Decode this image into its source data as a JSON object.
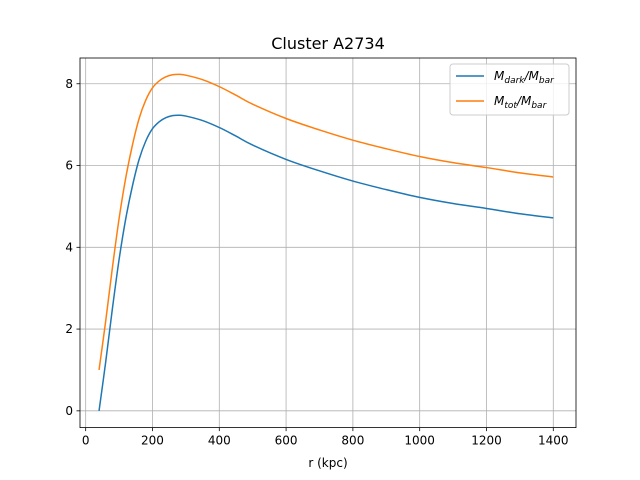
{
  "chart_data": {
    "type": "line",
    "title": "Cluster A2734",
    "xlabel": "r (kpc)",
    "ylabel": "",
    "xlim": [
      -17,
      1468
    ],
    "ylim": [
      -0.41,
      8.63
    ],
    "xticks": [
      0,
      200,
      400,
      600,
      800,
      1000,
      1200,
      1400
    ],
    "yticks": [
      0,
      2,
      4,
      6,
      8
    ],
    "grid": true,
    "legend_position": "top-right",
    "series": [
      {
        "name": "M_dark/M_bar",
        "legend_main": "M",
        "legend_sub1": "dark",
        "legend_mid": "/M",
        "legend_sub2": "bar",
        "color": "#1f77b4",
        "x": [
          40,
          60,
          80,
          100,
          120,
          140,
          160,
          180,
          200,
          220,
          240,
          260,
          280,
          300,
          350,
          400,
          450,
          500,
          600,
          700,
          800,
          900,
          1000,
          1100,
          1200,
          1300,
          1400
        ],
        "y": [
          0.0,
          1.2,
          2.5,
          3.7,
          4.7,
          5.5,
          6.15,
          6.6,
          6.9,
          7.07,
          7.17,
          7.22,
          7.23,
          7.21,
          7.1,
          6.93,
          6.72,
          6.5,
          6.15,
          5.87,
          5.62,
          5.41,
          5.22,
          5.07,
          4.95,
          4.82,
          4.72
        ]
      },
      {
        "name": "M_tot/M_bar",
        "legend_main": "M",
        "legend_sub1": "tot",
        "legend_mid": "/M",
        "legend_sub2": "bar",
        "color": "#ff7f0e",
        "x": [
          40,
          60,
          80,
          100,
          120,
          140,
          160,
          180,
          200,
          220,
          240,
          260,
          280,
          300,
          350,
          400,
          450,
          500,
          600,
          700,
          800,
          900,
          1000,
          1100,
          1200,
          1300,
          1400
        ],
        "y": [
          1.0,
          2.2,
          3.5,
          4.7,
          5.7,
          6.5,
          7.15,
          7.6,
          7.9,
          8.07,
          8.17,
          8.22,
          8.23,
          8.21,
          8.1,
          7.93,
          7.72,
          7.5,
          7.15,
          6.87,
          6.62,
          6.41,
          6.22,
          6.07,
          5.95,
          5.82,
          5.72
        ]
      }
    ]
  }
}
